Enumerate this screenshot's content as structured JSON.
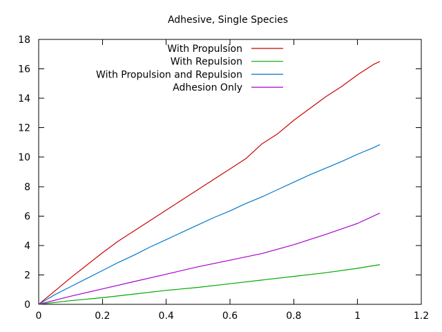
{
  "chart_data": {
    "type": "line",
    "title": "Adhesive, Single Species",
    "xlabel": "",
    "ylabel": "",
    "xlim": [
      0,
      1.2
    ],
    "ylim": [
      0,
      18
    ],
    "xticks": [
      0,
      0.2,
      0.4,
      0.6,
      0.8,
      1,
      1.2
    ],
    "yticks": [
      0,
      2,
      4,
      6,
      8,
      10,
      12,
      14,
      16,
      18
    ],
    "grid": false,
    "legend_position": "top-center",
    "series": [
      {
        "name": "With Propulsion",
        "color": "#cc0000",
        "points": [
          [
            0,
            0
          ],
          [
            0.05,
            0.9
          ],
          [
            0.1,
            1.8
          ],
          [
            0.15,
            2.65
          ],
          [
            0.2,
            3.5
          ],
          [
            0.25,
            4.3
          ],
          [
            0.3,
            5.0
          ],
          [
            0.35,
            5.7
          ],
          [
            0.4,
            6.4
          ],
          [
            0.45,
            7.1
          ],
          [
            0.5,
            7.8
          ],
          [
            0.55,
            8.5
          ],
          [
            0.6,
            9.2
          ],
          [
            0.65,
            9.9
          ],
          [
            0.7,
            10.9
          ],
          [
            0.75,
            11.6
          ],
          [
            0.8,
            12.5
          ],
          [
            0.85,
            13.3
          ],
          [
            0.9,
            14.1
          ],
          [
            0.95,
            14.8
          ],
          [
            1.0,
            15.6
          ],
          [
            1.05,
            16.3
          ],
          [
            1.07,
            16.5
          ]
        ]
      },
      {
        "name": "With Repulsion",
        "color": "#00aa00",
        "points": [
          [
            0,
            0
          ],
          [
            0.1,
            0.25
          ],
          [
            0.2,
            0.45
          ],
          [
            0.3,
            0.7
          ],
          [
            0.4,
            0.95
          ],
          [
            0.5,
            1.15
          ],
          [
            0.6,
            1.4
          ],
          [
            0.7,
            1.65
          ],
          [
            0.8,
            1.9
          ],
          [
            0.9,
            2.15
          ],
          [
            1.0,
            2.45
          ],
          [
            1.07,
            2.7
          ]
        ]
      },
      {
        "name": "With Propulsion and Repulsion",
        "color": "#0077cc",
        "points": [
          [
            0,
            0
          ],
          [
            0.05,
            0.65
          ],
          [
            0.1,
            1.2
          ],
          [
            0.15,
            1.75
          ],
          [
            0.2,
            2.3
          ],
          [
            0.25,
            2.85
          ],
          [
            0.3,
            3.35
          ],
          [
            0.35,
            3.9
          ],
          [
            0.4,
            4.4
          ],
          [
            0.45,
            4.9
          ],
          [
            0.5,
            5.4
          ],
          [
            0.55,
            5.9
          ],
          [
            0.6,
            6.35
          ],
          [
            0.65,
            6.85
          ],
          [
            0.7,
            7.3
          ],
          [
            0.75,
            7.8
          ],
          [
            0.8,
            8.3
          ],
          [
            0.85,
            8.8
          ],
          [
            0.9,
            9.25
          ],
          [
            0.95,
            9.7
          ],
          [
            1.0,
            10.2
          ],
          [
            1.05,
            10.65
          ],
          [
            1.07,
            10.85
          ]
        ]
      },
      {
        "name": "Adhesion Only",
        "color": "#aa00cc",
        "points": [
          [
            0,
            0
          ],
          [
            0.1,
            0.55
          ],
          [
            0.2,
            1.05
          ],
          [
            0.3,
            1.55
          ],
          [
            0.4,
            2.05
          ],
          [
            0.5,
            2.55
          ],
          [
            0.6,
            3.0
          ],
          [
            0.7,
            3.45
          ],
          [
            0.8,
            4.05
          ],
          [
            0.9,
            4.75
          ],
          [
            1.0,
            5.5
          ],
          [
            1.07,
            6.2
          ]
        ]
      }
    ]
  }
}
